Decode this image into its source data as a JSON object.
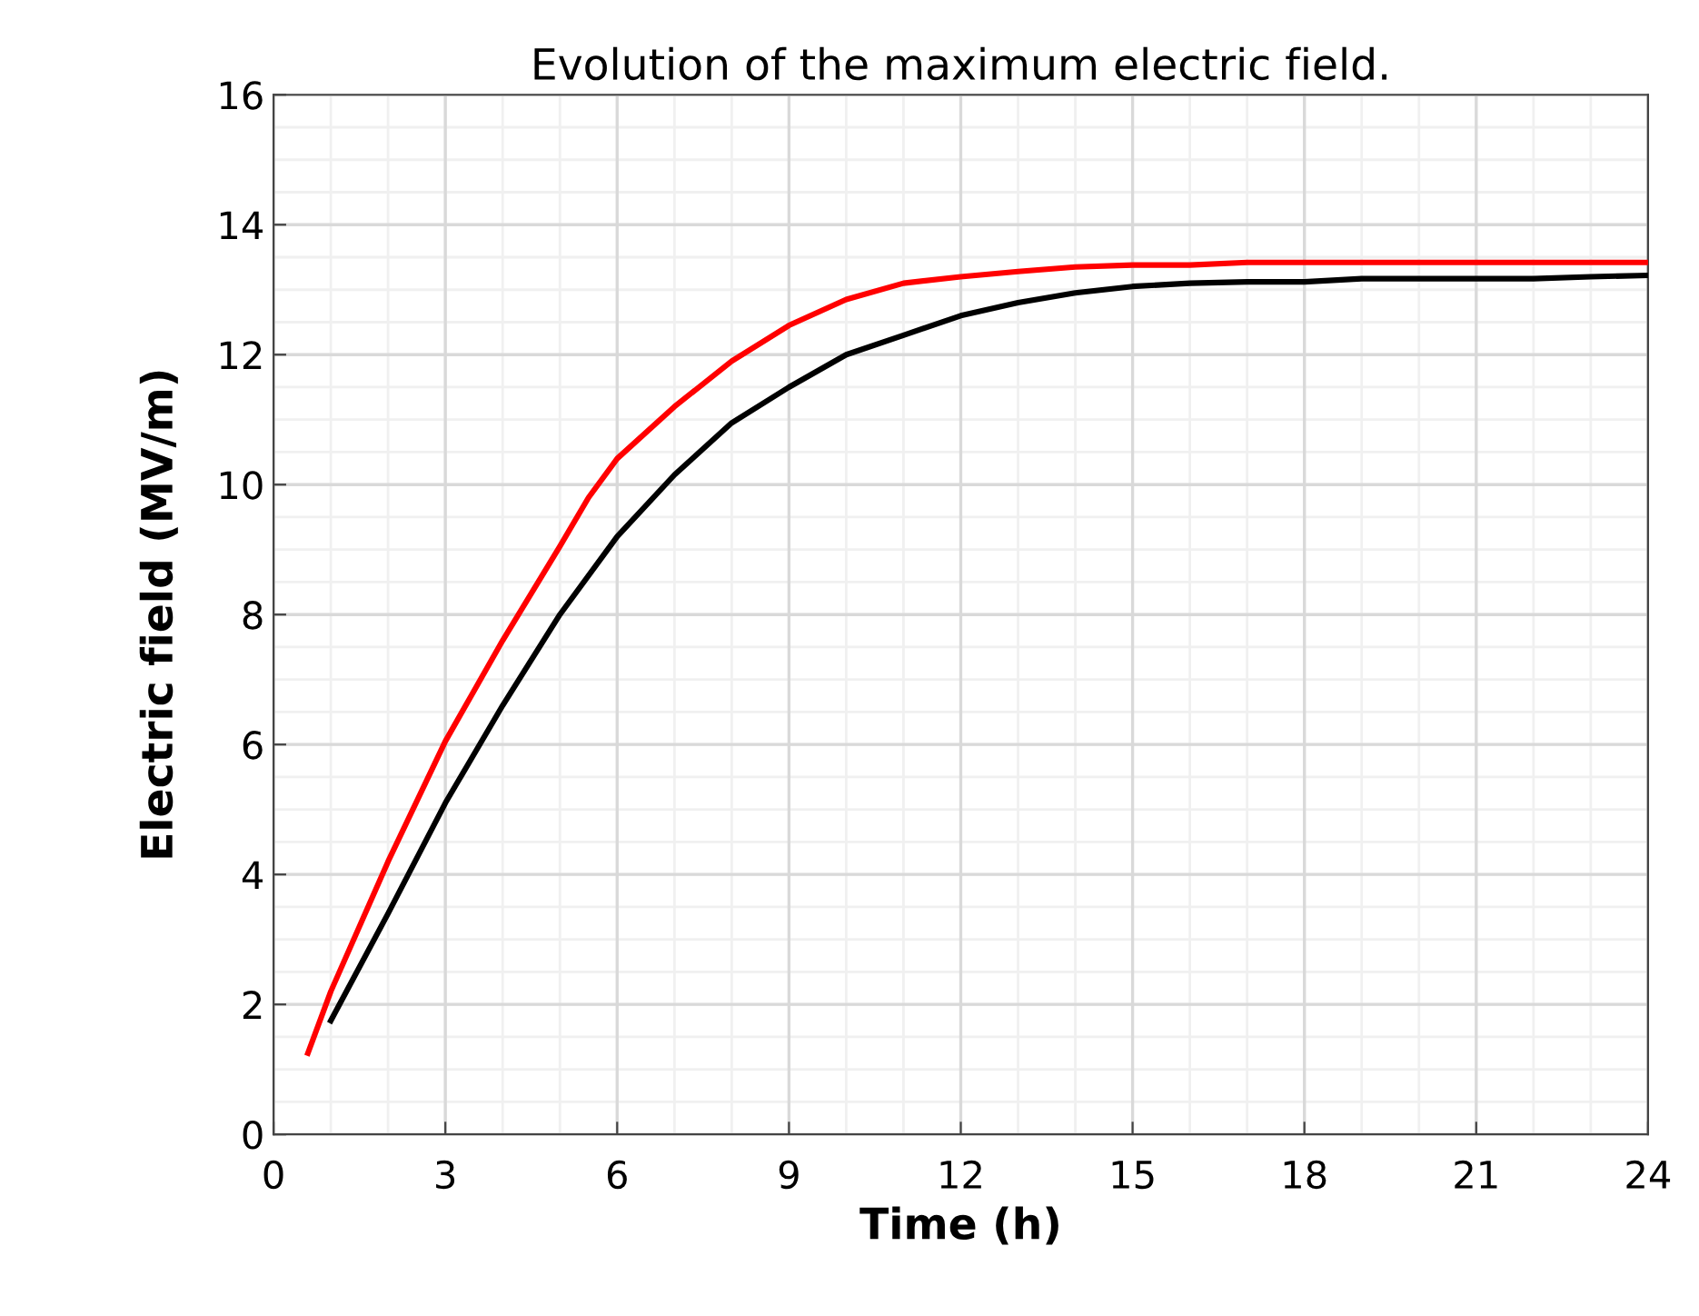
{
  "chart_data": {
    "type": "line",
    "title": "Evolution of the maximum electric field.",
    "xlabel": "Time (h)",
    "ylabel": "Electric field (MV/m)",
    "xlim": [
      0,
      24
    ],
    "xticks": [
      0,
      3,
      6,
      9,
      12,
      15,
      18,
      21,
      24
    ],
    "ylim": [
      0,
      16
    ],
    "yticks": [
      0,
      2,
      4,
      6,
      8,
      10,
      12,
      14,
      16
    ],
    "grid": true,
    "marker": "none",
    "line_style": "solid",
    "series": [
      {
        "color": "#000000",
        "x": [
          1,
          2,
          3,
          4,
          5,
          6,
          7,
          8,
          9,
          10,
          11,
          12,
          13,
          14,
          15,
          16,
          17,
          18,
          19,
          20,
          21,
          22,
          23,
          24
        ],
        "values": [
          1.75,
          3.4,
          5.1,
          6.6,
          8.0,
          9.2,
          10.15,
          10.95,
          11.5,
          12.0,
          12.3,
          12.6,
          12.8,
          12.95,
          13.05,
          13.1,
          13.12,
          13.12,
          13.17,
          13.17,
          13.17,
          13.17,
          13.2,
          13.22
        ]
      },
      {
        "color": "#ff0000",
        "x": [
          0.6,
          1,
          2,
          3,
          4,
          5,
          5.5,
          6,
          7,
          8,
          9,
          10,
          11,
          12,
          13,
          14,
          15,
          16,
          17,
          24
        ],
        "values": [
          1.25,
          2.2,
          4.2,
          6.05,
          7.6,
          9.05,
          9.8,
          10.4,
          11.2,
          11.9,
          12.45,
          12.85,
          13.1,
          13.2,
          13.28,
          13.35,
          13.38,
          13.38,
          13.42,
          13.42
        ]
      }
    ]
  }
}
